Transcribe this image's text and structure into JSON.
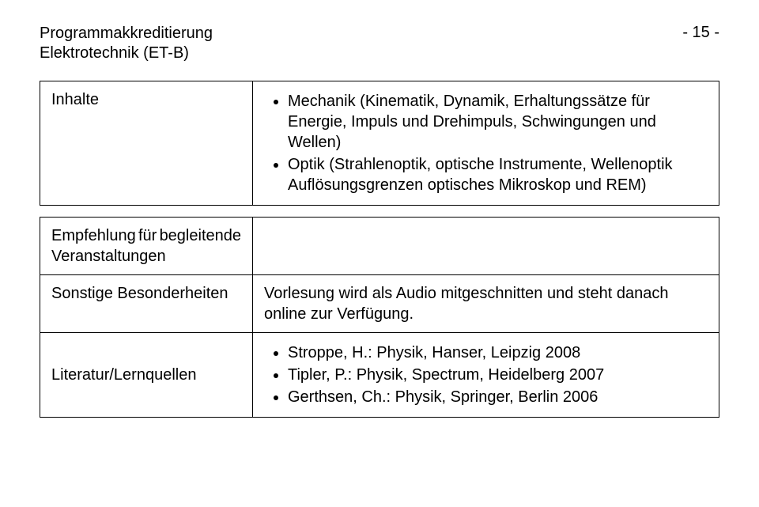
{
  "header": {
    "line1": "Programmakkreditierung",
    "line2": "Elektrotechnik (ET-B)",
    "page": "- 15 -"
  },
  "rows": {
    "inhalte": {
      "label": "Inhalte",
      "bullets": [
        "Mechanik (Kinematik, Dynamik, Erhaltungssätze für Energie, Impuls und Drehimpuls, Schwingungen und Wellen)",
        "Optik (Strahlenoptik, optische Instrumente, Wellenoptik Auflösungsgrenzen optisches Mikroskop und REM)"
      ]
    },
    "empfehlung": {
      "label_p1": "Empfehlung",
      "label_p2": "für",
      "label_p3": "begleitende",
      "label_line2": "Veranstaltungen",
      "content": ""
    },
    "sonstige": {
      "label": "Sonstige Besonderheiten",
      "content": "Vorlesung wird als Audio mitgeschnitten und steht danach online zur Verfügung."
    },
    "literatur": {
      "label": "Literatur/Lernquellen",
      "bullets": [
        "Stroppe, H.: Physik, Hanser, Leipzig 2008",
        "Tipler, P.: Physik, Spectrum, Heidelberg 2007",
        "Gerthsen, Ch.: Physik, Springer, Berlin 2006"
      ]
    }
  }
}
